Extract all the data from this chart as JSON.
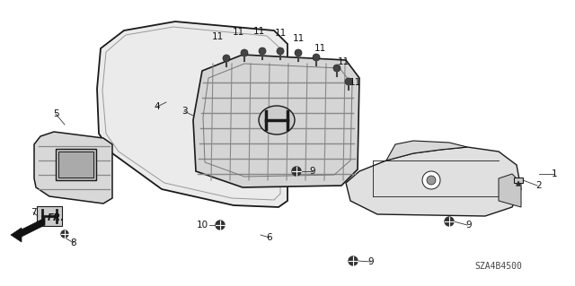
{
  "diagram_code": "SZA4B4500",
  "bg_color": "#ffffff",
  "line_color": "#1a1a1a",
  "fig_w": 6.4,
  "fig_h": 3.19,
  "dpi": 100
}
